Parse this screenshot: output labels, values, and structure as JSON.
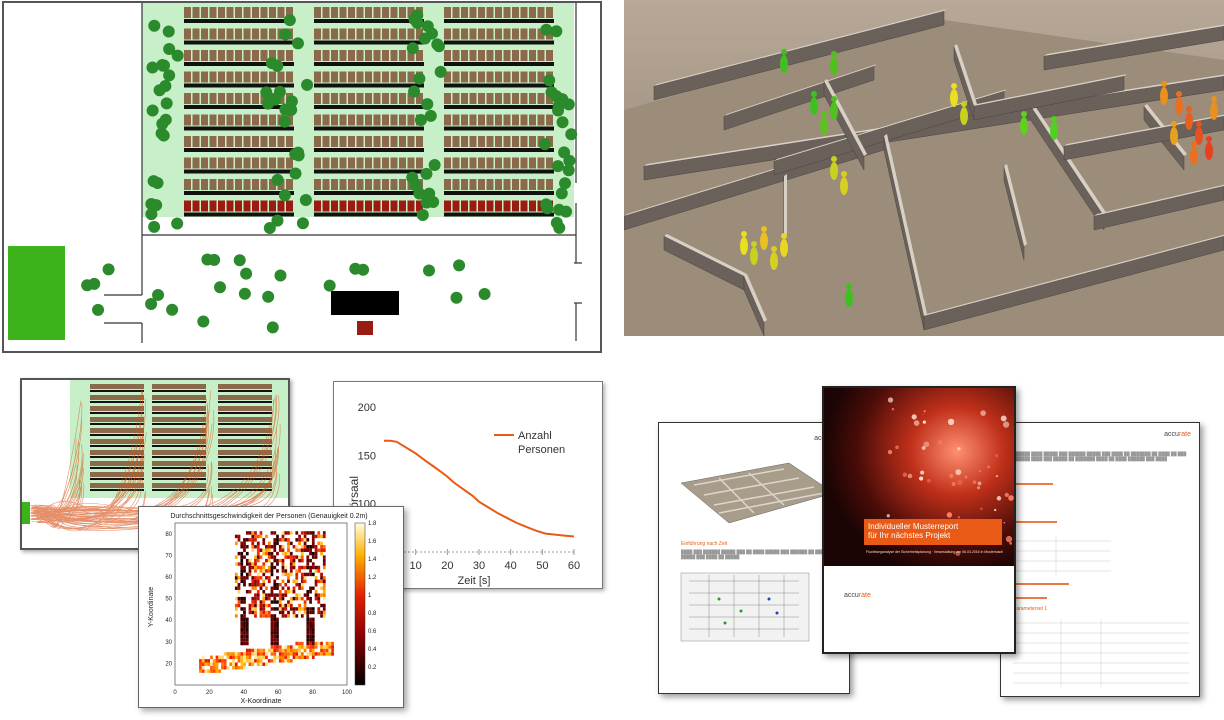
{
  "colors": {
    "accent": "#e85a16",
    "agent_green": "#2b8a2b",
    "zone_green": "#c8f0c8",
    "exit_green": "#3cb31a",
    "seat_brown": "#8a6a4a",
    "dark_red": "#9a1b12"
  },
  "line_chart": {
    "ylabel": "Personen im Hörsaal",
    "xlabel": "Zeit [s]",
    "legend": [
      "Anzahl",
      "Personen"
    ],
    "y_ticks": [
      "200",
      "150",
      "100"
    ],
    "x_ticks": [
      "10",
      "20",
      "30",
      "40",
      "50",
      "60"
    ]
  },
  "heatmap": {
    "title": "Durchschnittsgeschwindigkeit der Personen (Genauigkeit 0.2m)",
    "xlabel": "X-Koordinate",
    "ylabel": "Y-Koordinate",
    "x_ticks": [
      "0",
      "20",
      "40",
      "60",
      "80",
      "100"
    ],
    "y_ticks": [
      "80",
      "70",
      "60",
      "50",
      "40",
      "30",
      "20"
    ],
    "colorbar_ticks": [
      "1.8",
      "1.6",
      "1.4",
      "1.2",
      "1",
      "0.8",
      "0.6",
      "0.4",
      "0.2"
    ]
  },
  "documents": {
    "logo_prefix": "accu",
    "logo_suffix": "rate",
    "cover_title_line1": "Individueller Musterreport",
    "cover_title_line2": "für Ihr nächstes Projekt",
    "cover_subtitle": "Fluchtweganalyse der Sicherheitsplanung · Veranstaltung am 06.03.2016 in Musterstadt",
    "left_caption": "Einführung nach Zeit",
    "right_heading": "Parameterset 1"
  },
  "chart_data": [
    {
      "type": "line",
      "title": "",
      "xlabel": "Zeit [s]",
      "ylabel": "Personen im Hörsaal",
      "xlim": [
        0,
        60
      ],
      "ylim": [
        50,
        200
      ],
      "series": [
        {
          "name": "Anzahl Personen",
          "x": [
            0,
            2,
            4,
            6,
            8,
            10,
            12,
            15,
            18,
            20,
            22,
            25,
            28,
            30,
            33,
            36,
            39,
            42,
            45,
            48,
            51,
            54,
            57,
            60
          ],
          "y": [
            165,
            165,
            164,
            160,
            156,
            152,
            147,
            140,
            133,
            128,
            122,
            115,
            108,
            102,
            96,
            90,
            85,
            80,
            76,
            72,
            69,
            68,
            67,
            66
          ]
        }
      ]
    },
    {
      "type": "heatmap",
      "title": "Durchschnittsgeschwindigkeit der Personen (Genauigkeit 0.2m)",
      "xlabel": "X-Koordinate",
      "ylabel": "Y-Koordinate",
      "xlim": [
        0,
        100
      ],
      "ylim": [
        10,
        85
      ],
      "colorbar_range": [
        0,
        1.8
      ]
    }
  ]
}
